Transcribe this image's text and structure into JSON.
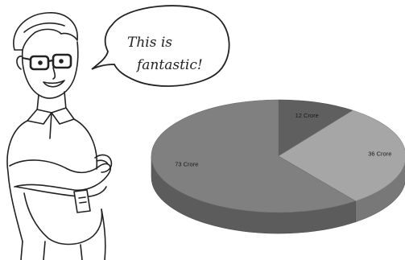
{
  "speech_bubble": {
    "line1": "This is",
    "line2": "fantastic!"
  },
  "chart_data": {
    "type": "pie",
    "style": "3d-exploded",
    "title": "",
    "slices": [
      {
        "label": "12 Crore",
        "value": 12,
        "color": "#5f5f5f"
      },
      {
        "label": "36 Crore",
        "value": 36,
        "color": "#a6a6a6"
      },
      {
        "label": "73 Crore",
        "value": 73,
        "color": "#808080"
      }
    ],
    "legend": "none"
  }
}
